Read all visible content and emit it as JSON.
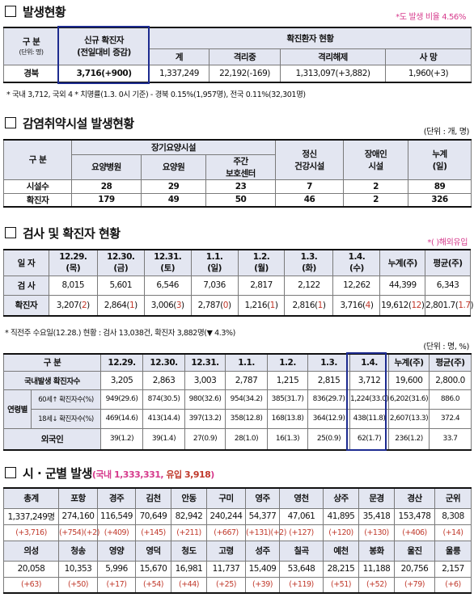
{
  "s1": {
    "title": "발생현황",
    "rate_note": "*도 발생 비율 4.56%",
    "h_gubun": "구 분",
    "h_unit": "(단위: 명)",
    "h_new1": "신규 확진자",
    "h_new2": "(전일대비 증감)",
    "h_status": "확진환자 현황",
    "h_total": "계",
    "h_isol": "격리중",
    "h_release": "격리해제",
    "h_death": "사 망",
    "row_label": "경북",
    "new": "3,716(+900)",
    "total": "1,337,249",
    "isol": "22,192(-169)",
    "release": "1,313,097(+3,882)",
    "death": "1,960(+3)",
    "note1": "* 국내 3,712, 국외 4   * 치명률(1.3. 0시 기준) - 경북 0.15%(1,957명), 전국 0.11%(32,301명)"
  },
  "s2": {
    "title": "감염취약시설 발생현황",
    "unit": "(단위 : 개, 명)",
    "h_gubun": "구 분",
    "h_long": "장기요양시설",
    "h_hosp": "요양병원",
    "h_home": "요양원",
    "h_day1": "주간",
    "h_day2": "보호센터",
    "h_mental1": "정신",
    "h_mental2": "건강시설",
    "h_disab1": "장애인",
    "h_disab2": "시설",
    "h_cum1": "누계",
    "h_cum2": "(일)",
    "rows": [
      {
        "label": "시설수",
        "v": [
          "28",
          "29",
          "23",
          "7",
          "2",
          "89"
        ]
      },
      {
        "label": "확진자",
        "v": [
          "179",
          "49",
          "50",
          "46",
          "2",
          "326"
        ]
      }
    ]
  },
  "s3": {
    "title": "검사 및 확진자 현황",
    "overseas": "*( )해외유입",
    "h_date": "일 자",
    "dates": [
      [
        "12.29.",
        "(목)"
      ],
      [
        "12.30.",
        "(금)"
      ],
      [
        "12.31.",
        "(토)"
      ],
      [
        "1.1.",
        "(일)"
      ],
      [
        "1.2.",
        "(월)"
      ],
      [
        "1.3.",
        "(화)"
      ],
      [
        "1.4.",
        "(수)"
      ]
    ],
    "h_cum": "누계(주)",
    "h_avg": "평균(주)",
    "r_test": "검 사",
    "tests": [
      "8,015",
      "5,601",
      "6,546",
      "7,036",
      "2,817",
      "2,122",
      "12,262",
      "44,399",
      "6,343"
    ],
    "r_conf": "확진자",
    "conf": [
      [
        "3,207",
        "2"
      ],
      [
        "2,864",
        "1"
      ],
      [
        "3,006",
        "3"
      ],
      [
        "2,787",
        "0"
      ],
      [
        "1,216",
        "1"
      ],
      [
        "2,816",
        "1"
      ],
      [
        "3,716",
        "4"
      ],
      [
        "19,612",
        "12"
      ],
      [
        "2,801.7",
        "1.7"
      ]
    ],
    "note": "* 직전주 수요일(12.28.) 현황 : 검사 13,038건, 확진자 3,882명(▼ 4.3%)"
  },
  "s4": {
    "unit": "(단위 : 명, %)",
    "h_gubun": "구 분",
    "dates": [
      "12.29.",
      "12.30.",
      "12.31.",
      "1.1.",
      "1.2.",
      "1.3.",
      "1.4."
    ],
    "h_cum": "누계(주)",
    "h_avg": "평균(주)",
    "r_dom": "국내발생 확진자수",
    "dom": [
      "3,205",
      "2,863",
      "3,003",
      "2,787",
      "1,215",
      "2,815",
      "3,712",
      "19,600",
      "2,800.0"
    ],
    "r_age": "연령별",
    "r_60": "60세↑",
    "r_18": "18세↓",
    "r_rate": "확진자수(%)",
    "a60": [
      "949(29.6)",
      "874(30.5)",
      "980(32.6)",
      "954(34.2)",
      "385(31.7)",
      "836(29.7)",
      "1,224(33.0)",
      "6,202(31.6)",
      "886.0"
    ],
    "a18": [
      "469(14.6)",
      "413(14.4)",
      "397(13.2)",
      "358(12.8)",
      "168(13.8)",
      "364(12.9)",
      "438(11.8)",
      "2,607(13.3)",
      "372.4"
    ],
    "r_foreign": "외국인",
    "foreign": [
      "39(1.2)",
      "39(1.4)",
      "27(0.9)",
      "28(1.0)",
      "16(1.3)",
      "25(0.9)",
      "62(1.7)",
      "236(1.2)",
      "33.7"
    ]
  },
  "s5": {
    "title": "시 · 군별 발생",
    "sub_a": "(국내 1,333,331, ",
    "sub_b": "유입 3,918",
    "sub_c": ")",
    "row1_names": [
      "총계",
      "포항",
      "경주",
      "김천",
      "안동",
      "구미",
      "영주",
      "영천",
      "상주",
      "문경",
      "경산",
      "군위"
    ],
    "row1_vals": [
      "1,337,249명",
      "274,160",
      "116,549",
      "70,649",
      "82,942",
      "240,244",
      "54,377",
      "47,061",
      "41,895",
      "35,418",
      "153,478",
      "8,308"
    ],
    "row1_inc": [
      "(+3,716)",
      "(+754)(+2)",
      "(+409)",
      "(+145)",
      "(+211)",
      "(+667)",
      "(+131)(+2)",
      "(+127)",
      "(+120)",
      "(+130)",
      "(+406)",
      "(+14)"
    ],
    "row2_names": [
      "의성",
      "청송",
      "영양",
      "영덕",
      "청도",
      "고령",
      "성주",
      "칠곡",
      "예천",
      "봉화",
      "울진",
      "울릉"
    ],
    "row2_vals": [
      "20,058",
      "10,353",
      "5,996",
      "15,670",
      "16,981",
      "11,737",
      "15,409",
      "53,648",
      "28,215",
      "11,188",
      "20,756",
      "2,157"
    ],
    "row2_inc": [
      "(+63)",
      "(+50)",
      "(+17)",
      "(+54)",
      "(+44)",
      "(+25)",
      "(+39)",
      "(+119)",
      "(+51)",
      "(+52)",
      "(+79)",
      "(+6)"
    ]
  },
  "colors": {
    "accent": "#d63a8c",
    "header_bg": "#e3e6f1",
    "highlight_frame": "#1d2b8f",
    "increase": "#c0392b"
  }
}
